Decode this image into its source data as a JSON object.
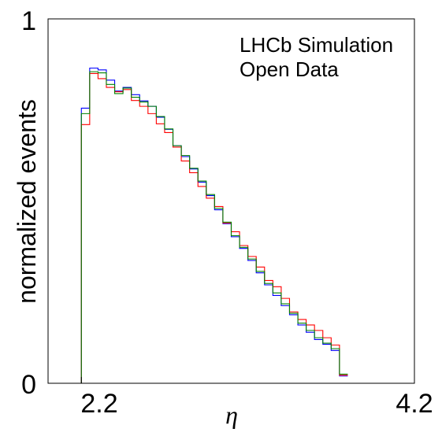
{
  "chart_data": {
    "type": "line",
    "step": true,
    "title": "",
    "xlabel": "η",
    "ylabel": "normalized events",
    "xlim": [
      2.0,
      4.2
    ],
    "ylim": [
      0,
      1
    ],
    "x_tick_labels": [
      "2.2",
      "4.2"
    ],
    "x_ticks": [
      2.2,
      4.2
    ],
    "y_tick_labels": [
      "0",
      "1"
    ],
    "y_ticks": [
      0,
      1
    ],
    "annotations": [
      "LHCb Simulation",
      "Open Data"
    ],
    "legend": "none",
    "grid": false,
    "bin_edges_start": 2.2,
    "bin_width": 0.05,
    "series": [
      {
        "color": "#0000ff",
        "values": [
          0.755,
          0.865,
          0.86,
          0.832,
          0.802,
          0.812,
          0.792,
          0.775,
          0.76,
          0.73,
          0.697,
          0.652,
          0.622,
          0.588,
          0.552,
          0.515,
          0.476,
          0.438,
          0.402,
          0.37,
          0.337,
          0.303,
          0.27,
          0.241,
          0.213,
          0.188,
          0.16,
          0.14,
          0.12,
          0.107,
          0.09,
          0.02
        ]
      },
      {
        "color": "#ff0000",
        "values": [
          0.71,
          0.85,
          0.836,
          0.812,
          0.8,
          0.806,
          0.776,
          0.76,
          0.74,
          0.712,
          0.688,
          0.648,
          0.61,
          0.578,
          0.54,
          0.508,
          0.485,
          0.44,
          0.416,
          0.378,
          0.348,
          0.319,
          0.282,
          0.265,
          0.233,
          0.196,
          0.175,
          0.16,
          0.145,
          0.125,
          0.105,
          0.022
        ]
      },
      {
        "color": "#008000",
        "values": [
          0.74,
          0.855,
          0.852,
          0.82,
          0.795,
          0.81,
          0.785,
          0.772,
          0.76,
          0.732,
          0.698,
          0.652,
          0.625,
          0.59,
          0.555,
          0.518,
          0.48,
          0.442,
          0.405,
          0.373,
          0.341,
          0.307,
          0.274,
          0.248,
          0.218,
          0.192,
          0.165,
          0.145,
          0.125,
          0.11,
          0.095,
          0.025
        ]
      }
    ]
  }
}
